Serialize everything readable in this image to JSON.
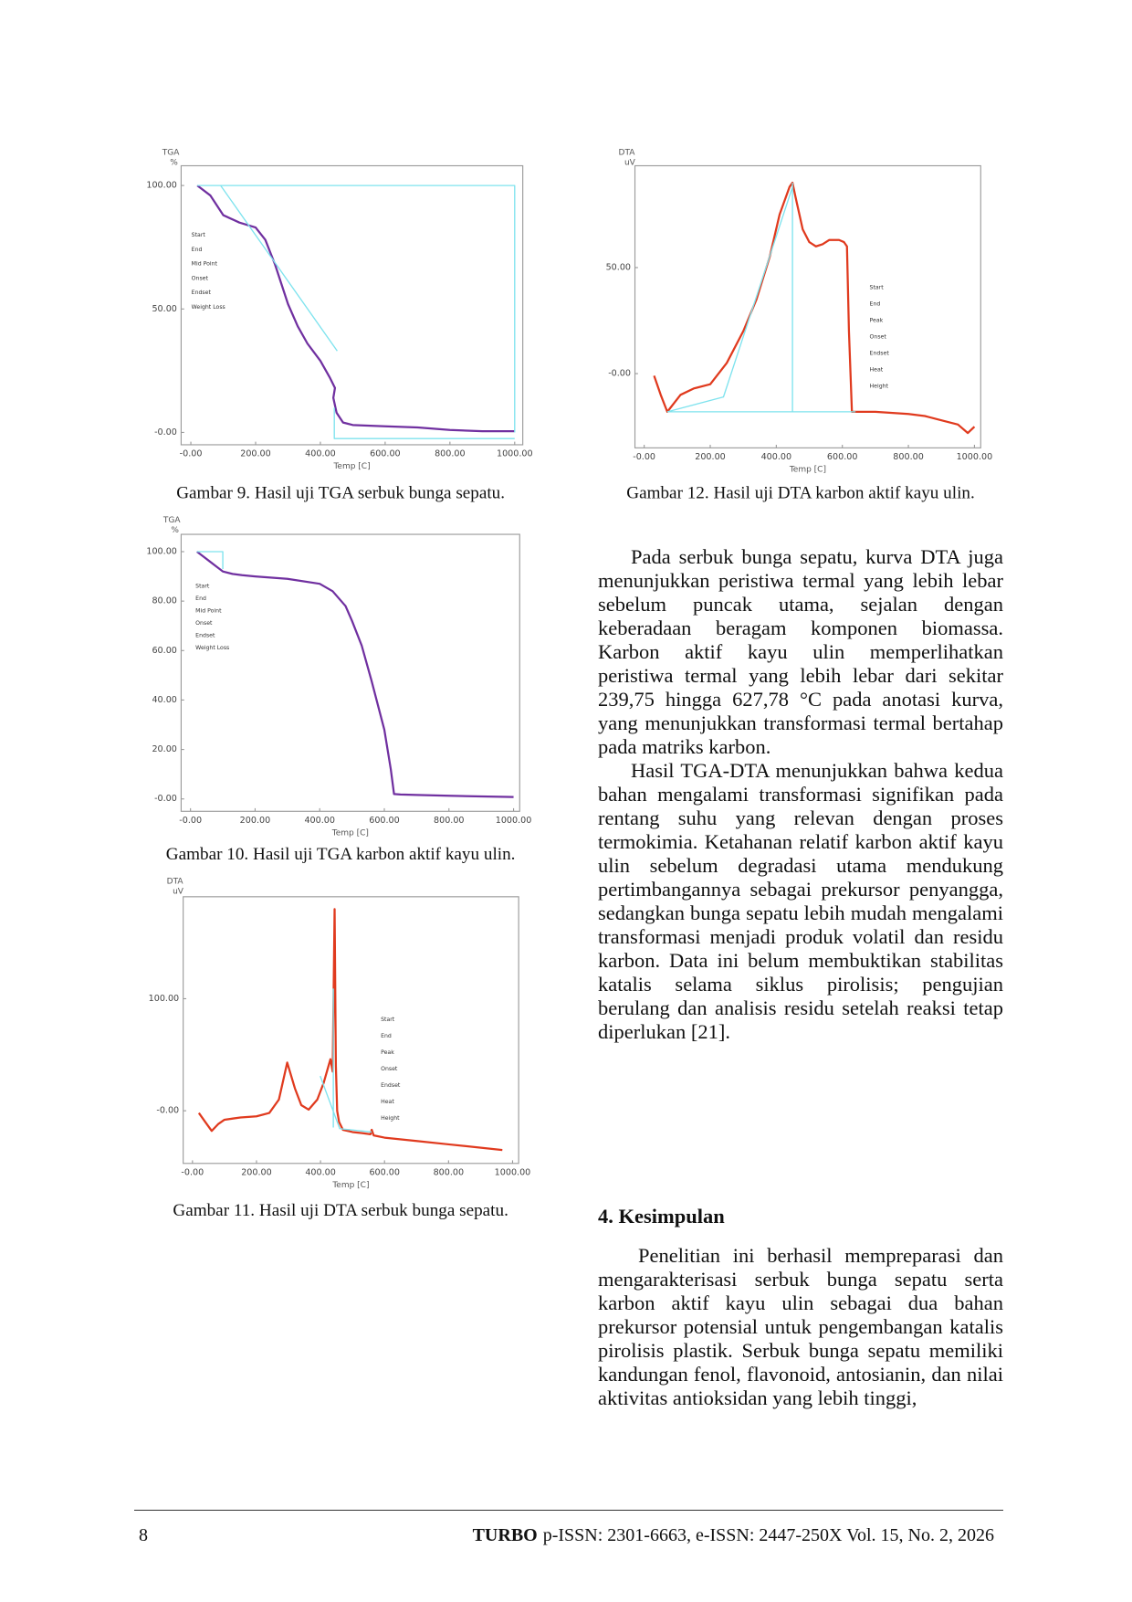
{
  "chart_data": [
    {
      "type": "line",
      "caption": "Gambar 9. Hasil uji TGA serbuk bunga sepatu.",
      "y_axis_title": "TGA",
      "y_axis_unit": "%",
      "x_axis_title": "Temp [C]",
      "xlim": [
        -30,
        1025
      ],
      "ylim": [
        -5,
        108
      ],
      "xticks": [
        {
          "value": 0,
          "label": "-0.00"
        },
        {
          "value": 200,
          "label": "200.00"
        },
        {
          "value": 400,
          "label": "400.00"
        },
        {
          "value": 600,
          "label": "600.00"
        },
        {
          "value": 800,
          "label": "800.00"
        },
        {
          "value": 1000,
          "label": "1000.00"
        }
      ],
      "yticks": [
        {
          "value": 0,
          "label": "-0.00"
        },
        {
          "value": 50,
          "label": "50.00"
        },
        {
          "value": 100,
          "label": "100.00"
        }
      ],
      "series": [
        {
          "color": "#7030a0",
          "x": [
            20,
            60,
            100,
            150,
            200,
            230,
            260,
            280,
            300,
            330,
            360,
            400,
            430,
            445,
            440,
            450,
            470,
            500,
            600,
            700,
            800,
            900,
            1000
          ],
          "values": [
            100,
            96,
            88,
            85,
            83,
            78,
            68,
            60,
            52,
            43,
            36,
            29,
            22,
            18,
            14,
            8,
            4,
            3,
            2.5,
            2,
            1,
            0.5,
            0.5
          ]
        },
        {
          "color": "#7fe3ee",
          "x": [
            20,
            1000,
            1000,
            null,
            92,
            452,
            null,
            443,
            443,
            1000
          ],
          "values": [
            100,
            100,
            0,
            null,
            100,
            33,
            null,
            10,
            -2.5,
            -2.5
          ]
        }
      ],
      "annotations": [
        "Start",
        "End",
        "Mid Point",
        "Onset",
        "Endset",
        "Weight Loss"
      ]
    },
    {
      "type": "line",
      "caption": "Gambar 12. Hasil uji DTA karbon aktif kayu ulin.",
      "y_axis_title": "DTA",
      "y_axis_unit": "uV",
      "x_axis_title": "Temp [C]",
      "xlim": [
        -28,
        1019
      ],
      "ylim": [
        -35,
        98
      ],
      "xticks": [
        {
          "value": 0,
          "label": "-0.00"
        },
        {
          "value": 200,
          "label": "200.00"
        },
        {
          "value": 400,
          "label": "400.00"
        },
        {
          "value": 600,
          "label": "600.00"
        },
        {
          "value": 800,
          "label": "800.00"
        },
        {
          "value": 1000,
          "label": "1000.00"
        }
      ],
      "yticks": [
        {
          "value": 0,
          "label": "-0.00"
        },
        {
          "value": 50,
          "label": "50.00"
        }
      ],
      "series": [
        {
          "color": "#e03a1e",
          "x": [
            30,
            50,
            70,
            90,
            110,
            150,
            200,
            250,
            300,
            340,
            380,
            410,
            440,
            449,
            460,
            480,
            500,
            520,
            540,
            560,
            590,
            605,
            614,
            620,
            629,
            650,
            700,
            800,
            850,
            900,
            950,
            980,
            1000
          ],
          "values": [
            -1,
            -10,
            -18,
            -14,
            -10,
            -7,
            -5,
            5,
            20,
            35,
            55,
            75,
            88,
            90,
            82,
            68,
            62,
            60,
            61,
            63,
            63,
            62,
            60,
            20,
            -18,
            -18,
            -18,
            -19,
            -20,
            -22,
            -24,
            -28,
            -25
          ]
        },
        {
          "color": "#7fe3ee",
          "x": [
            70,
            240,
            449,
            null,
            449,
            449,
            null,
            70,
            640
          ],
          "values": [
            -18,
            -11,
            88,
            null,
            90,
            -18,
            null,
            -18,
            -18
          ]
        }
      ],
      "annotations": [
        "Start",
        "End",
        "Peak",
        "Onset",
        "Endset",
        "Heat",
        "Height"
      ]
    },
    {
      "type": "line",
      "caption": "Gambar 10. Hasil uji TGA karbon aktif kayu ulin.",
      "y_axis_title": "TGA",
      "y_axis_unit": "%",
      "x_axis_title": "Temp [C]",
      "xlim": [
        -29,
        1019
      ],
      "ylim": [
        -5,
        107
      ],
      "xticks": [
        {
          "value": 0,
          "label": "-0.00"
        },
        {
          "value": 200,
          "label": "200.00"
        },
        {
          "value": 400,
          "label": "400.00"
        },
        {
          "value": 600,
          "label": "600.00"
        },
        {
          "value": 800,
          "label": "800.00"
        },
        {
          "value": 1000,
          "label": "1000.00"
        }
      ],
      "yticks": [
        {
          "value": 0,
          "label": "-0.00"
        },
        {
          "value": 20,
          "label": "20.00"
        },
        {
          "value": 40,
          "label": "40.00"
        },
        {
          "value": 60,
          "label": "60.00"
        },
        {
          "value": 80,
          "label": "80.00"
        },
        {
          "value": 100,
          "label": "100.00"
        }
      ],
      "series": [
        {
          "color": "#7030a0",
          "x": [
            20,
            40,
            60,
            80,
            100,
            130,
            160,
            200,
            300,
            400,
            440,
            480,
            500,
            530,
            560,
            600,
            620,
            630,
            650,
            700,
            800,
            900,
            1000
          ],
          "values": [
            100,
            98,
            96,
            94,
            92,
            91,
            90.5,
            90,
            89,
            87,
            84,
            78,
            72,
            62,
            48,
            28,
            12,
            2,
            1.8,
            1.6,
            1.3,
            1,
            0.8
          ]
        },
        {
          "color": "#7fe3ee",
          "x": [
            20,
            100,
            100
          ],
          "values": [
            100,
            100,
            93
          ]
        }
      ],
      "annotations": [
        "Start",
        "End",
        "Mid Point",
        "Onset",
        "Endset",
        "Weight Loss"
      ]
    },
    {
      "type": "line",
      "caption": "Gambar 11. Hasil uji DTA serbuk bunga sepatu.",
      "y_axis_title": "DTA",
      "y_axis_unit": "uV",
      "x_axis_title": "Temp [C]",
      "xlim": [
        -29,
        1019
      ],
      "ylim": [
        -47,
        191
      ],
      "xticks": [
        {
          "value": 0,
          "label": "-0.00"
        },
        {
          "value": 200,
          "label": "200.00"
        },
        {
          "value": 400,
          "label": "400.00"
        },
        {
          "value": 600,
          "label": "600.00"
        },
        {
          "value": 800,
          "label": "800.00"
        },
        {
          "value": 1000,
          "label": "1000.00"
        }
      ],
      "yticks": [
        {
          "value": 0,
          "label": "-0.00"
        },
        {
          "value": 100,
          "label": "100.00"
        }
      ],
      "series": [
        {
          "color": "#e03a1e",
          "x": [
            20,
            40,
            60,
            80,
            100,
            150,
            200,
            240,
            270,
            296,
            320,
            340,
            363,
            390,
            410,
            431,
            438,
            444,
            448,
            452,
            458,
            470,
            500,
            530,
            556,
            560,
            566,
            600,
            700,
            800,
            968
          ],
          "values": [
            -2,
            -10,
            -18,
            -12,
            -8,
            -6,
            -5,
            -2,
            10,
            43,
            20,
            5,
            1,
            10,
            25,
            46,
            35,
            180,
            40,
            0,
            -10,
            -17,
            -19,
            -20,
            -21,
            -17,
            -22,
            -24,
            -27,
            -30,
            -35
          ]
        },
        {
          "color": "#7fe3ee",
          "x": [
            399,
            460,
            560,
            null,
            440,
            440
          ],
          "values": [
            31,
            -16,
            -19,
            null,
            109,
            -15
          ]
        }
      ],
      "annotations": [
        "Start",
        "End",
        "Peak",
        "Onset",
        "Endset",
        "Heat",
        "Height"
      ]
    }
  ],
  "body": {
    "paragraphs": [
      "Pada serbuk bunga sepatu, kurva DTA juga menunjukkan peristiwa termal yang lebih lebar sebelum puncak utama, sejalan dengan keberadaan beragam komponen biomassa. Karbon aktif kayu ulin memperlihatkan peristiwa termal yang lebih lebar dari sekitar 239,75 hingga 627,78 °C pada anotasi kurva, yang menunjukkan transformasi termal bertahap pada matriks karbon.",
      "Hasil TGA-DTA menunjukkan bahwa kedua bahan mengalami transformasi signifikan pada rentang suhu yang relevan dengan proses termokimia. Ketahanan relatif karbon aktif kayu ulin sebelum degradasi utama mendukung pertimbangannya sebagai prekursor penyangga, sedangkan bunga sepatu lebih mudah mengalami transformasi menjadi produk volatil dan residu karbon. Data ini belum membuktikan stabilitas katalis selama siklus pirolisis; pengujian berulang dan analisis residu setelah reaksi tetap diperlukan [21]."
    ]
  },
  "section": {
    "heading": "4. Kesimpulan",
    "paragraphs": [
      "Penelitian ini berhasil mempreparasi dan mengarakterisasi serbuk bunga sepatu serta karbon aktif kayu ulin sebagai dua bahan prekursor potensial untuk pengembangan katalis pirolisis plastik. Serbuk bunga sepatu memiliki kandungan fenol, flavonoid, antosianin, dan nilai aktivitas antioksidan yang lebih tinggi,"
    ]
  },
  "footer": {
    "page": "8",
    "journal": "TURBO",
    "issn": "p-ISSN: 2301-6663, e-ISSN: 2447-250X Vol. 15, No. 2, 2026"
  }
}
